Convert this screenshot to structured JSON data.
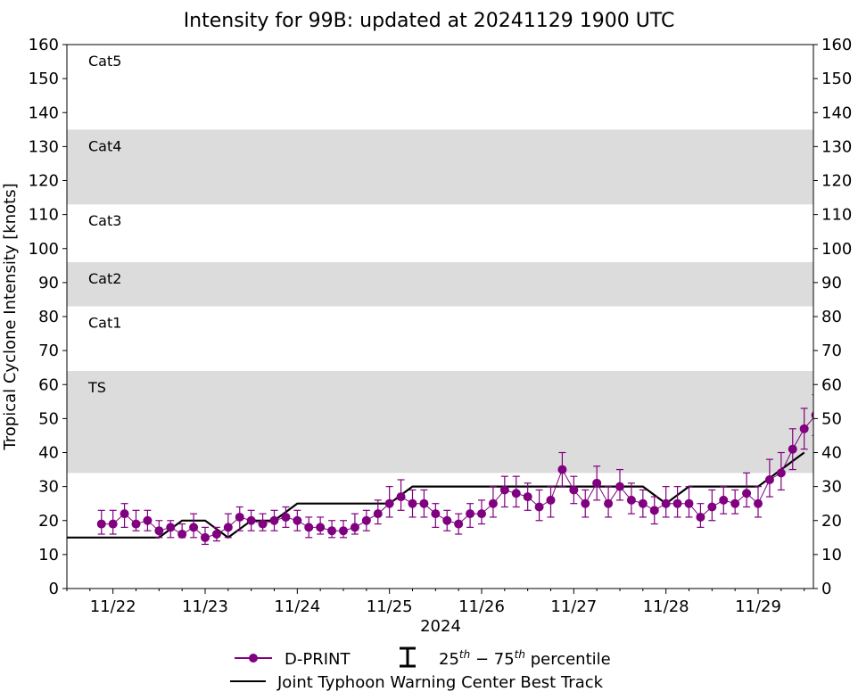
{
  "chart_data": {
    "type": "line",
    "title": "Intensity for 99B: updated at 20241129 1900 UTC",
    "ylabel": "Tropical Cyclone Intensity [knots]",
    "xlabel": "2024",
    "ylim": [
      0,
      160
    ],
    "xlim_days": [
      21.5,
      29.6
    ],
    "y_ticks": [
      0,
      10,
      20,
      30,
      40,
      50,
      60,
      70,
      80,
      90,
      100,
      110,
      120,
      130,
      140,
      150,
      160
    ],
    "x_ticks": [
      {
        "day": 22,
        "label": "11/22"
      },
      {
        "day": 23,
        "label": "11/23"
      },
      {
        "day": 24,
        "label": "11/24"
      },
      {
        "day": 25,
        "label": "11/25"
      },
      {
        "day": 26,
        "label": "11/26"
      },
      {
        "day": 27,
        "label": "11/27"
      },
      {
        "day": 28,
        "label": "11/28"
      },
      {
        "day": 29,
        "label": "11/29"
      }
    ],
    "category_bands": [
      {
        "name": "TS",
        "min": 34,
        "max": 64,
        "shaded": true
      },
      {
        "name": "Cat1",
        "min": 64,
        "max": 83,
        "shaded": false
      },
      {
        "name": "Cat2",
        "min": 83,
        "max": 96,
        "shaded": true
      },
      {
        "name": "Cat3",
        "min": 96,
        "max": 113,
        "shaded": false
      },
      {
        "name": "Cat4",
        "min": 113,
        "max": 135,
        "shaded": true
      },
      {
        "name": "Cat5",
        "min": 135,
        "max": 160,
        "shaded": false
      }
    ],
    "colors": {
      "dprint": "#800080",
      "best_track": "#000000",
      "band": "#dcdcdc"
    },
    "legend": [
      {
        "label": "D-PRINT",
        "kind": "dprint"
      },
      {
        "label": "25th – 75th percentile",
        "kind": "errorbar"
      },
      {
        "label": "Joint Typhoon Warning Center Best Track",
        "kind": "best_track"
      }
    ],
    "best_track": [
      [
        21.5,
        15
      ],
      [
        22.5,
        15
      ],
      [
        22.75,
        20
      ],
      [
        23.0,
        20
      ],
      [
        23.25,
        15
      ],
      [
        23.5,
        20
      ],
      [
        23.75,
        20
      ],
      [
        24.0,
        25
      ],
      [
        25.0,
        25
      ],
      [
        25.25,
        30
      ],
      [
        27.75,
        30
      ],
      [
        28.0,
        25
      ],
      [
        28.25,
        30
      ],
      [
        29.0,
        30
      ],
      [
        29.25,
        35
      ],
      [
        29.5,
        40
      ]
    ],
    "dprint_series": [
      {
        "x": 21.875,
        "y": 19,
        "lo": 16,
        "hi": 23
      },
      {
        "x": 22.0,
        "y": 19,
        "lo": 16,
        "hi": 23
      },
      {
        "x": 22.125,
        "y": 22,
        "lo": 18,
        "hi": 25
      },
      {
        "x": 22.25,
        "y": 19,
        "lo": 17,
        "hi": 23
      },
      {
        "x": 22.375,
        "y": 20,
        "lo": 17,
        "hi": 23
      },
      {
        "x": 22.5,
        "y": 17,
        "lo": 15,
        "hi": 20
      },
      {
        "x": 22.625,
        "y": 18,
        "lo": 15,
        "hi": 20
      },
      {
        "x": 22.75,
        "y": 16,
        "lo": 15,
        "hi": 19
      },
      {
        "x": 22.875,
        "y": 18,
        "lo": 15,
        "hi": 22
      },
      {
        "x": 23.0,
        "y": 15,
        "lo": 13,
        "hi": 18
      },
      {
        "x": 23.125,
        "y": 16,
        "lo": 14,
        "hi": 18
      },
      {
        "x": 23.25,
        "y": 18,
        "lo": 15,
        "hi": 22
      },
      {
        "x": 23.375,
        "y": 21,
        "lo": 17,
        "hi": 24
      },
      {
        "x": 23.5,
        "y": 20,
        "lo": 17,
        "hi": 23
      },
      {
        "x": 23.625,
        "y": 19,
        "lo": 17,
        "hi": 22
      },
      {
        "x": 23.75,
        "y": 20,
        "lo": 17,
        "hi": 23
      },
      {
        "x": 23.875,
        "y": 21,
        "lo": 18,
        "hi": 24
      },
      {
        "x": 24.0,
        "y": 20,
        "lo": 17,
        "hi": 23
      },
      {
        "x": 24.125,
        "y": 18,
        "lo": 15,
        "hi": 21
      },
      {
        "x": 24.25,
        "y": 18,
        "lo": 16,
        "hi": 21
      },
      {
        "x": 24.375,
        "y": 17,
        "lo": 15,
        "hi": 20
      },
      {
        "x": 24.5,
        "y": 17,
        "lo": 15,
        "hi": 20
      },
      {
        "x": 24.625,
        "y": 18,
        "lo": 16,
        "hi": 22
      },
      {
        "x": 24.75,
        "y": 20,
        "lo": 17,
        "hi": 23
      },
      {
        "x": 24.875,
        "y": 22,
        "lo": 19,
        "hi": 26
      },
      {
        "x": 25.0,
        "y": 25,
        "lo": 21,
        "hi": 30
      },
      {
        "x": 25.125,
        "y": 27,
        "lo": 23,
        "hi": 32
      },
      {
        "x": 25.25,
        "y": 25,
        "lo": 21,
        "hi": 29
      },
      {
        "x": 25.375,
        "y": 25,
        "lo": 21,
        "hi": 29
      },
      {
        "x": 25.5,
        "y": 22,
        "lo": 18,
        "hi": 25
      },
      {
        "x": 25.625,
        "y": 20,
        "lo": 17,
        "hi": 23
      },
      {
        "x": 25.75,
        "y": 19,
        "lo": 16,
        "hi": 22
      },
      {
        "x": 25.875,
        "y": 22,
        "lo": 18,
        "hi": 25
      },
      {
        "x": 26.0,
        "y": 22,
        "lo": 19,
        "hi": 26
      },
      {
        "x": 26.125,
        "y": 25,
        "lo": 21,
        "hi": 30
      },
      {
        "x": 26.25,
        "y": 29,
        "lo": 24,
        "hi": 33
      },
      {
        "x": 26.375,
        "y": 28,
        "lo": 24,
        "hi": 33
      },
      {
        "x": 26.5,
        "y": 27,
        "lo": 23,
        "hi": 31
      },
      {
        "x": 26.625,
        "y": 24,
        "lo": 20,
        "hi": 29
      },
      {
        "x": 26.75,
        "y": 26,
        "lo": 21,
        "hi": 30
      },
      {
        "x": 26.875,
        "y": 35,
        "lo": 30,
        "hi": 40
      },
      {
        "x": 27.0,
        "y": 29,
        "lo": 25,
        "hi": 33
      },
      {
        "x": 27.125,
        "y": 25,
        "lo": 21,
        "hi": 29
      },
      {
        "x": 27.25,
        "y": 31,
        "lo": 26,
        "hi": 36
      },
      {
        "x": 27.375,
        "y": 25,
        "lo": 21,
        "hi": 30
      },
      {
        "x": 27.5,
        "y": 30,
        "lo": 26,
        "hi": 35
      },
      {
        "x": 27.625,
        "y": 26,
        "lo": 22,
        "hi": 31
      },
      {
        "x": 27.75,
        "y": 25,
        "lo": 21,
        "hi": 29
      },
      {
        "x": 27.875,
        "y": 23,
        "lo": 19,
        "hi": 27
      },
      {
        "x": 28.0,
        "y": 25,
        "lo": 21,
        "hi": 30
      },
      {
        "x": 28.125,
        "y": 25,
        "lo": 21,
        "hi": 30
      },
      {
        "x": 28.25,
        "y": 25,
        "lo": 21,
        "hi": 30
      },
      {
        "x": 28.375,
        "y": 21,
        "lo": 18,
        "hi": 25
      },
      {
        "x": 28.5,
        "y": 24,
        "lo": 20,
        "hi": 29
      },
      {
        "x": 28.625,
        "y": 26,
        "lo": 22,
        "hi": 30
      },
      {
        "x": 28.75,
        "y": 25,
        "lo": 22,
        "hi": 29
      },
      {
        "x": 28.875,
        "y": 28,
        "lo": 24,
        "hi": 34
      },
      {
        "x": 29.0,
        "y": 25,
        "lo": 21,
        "hi": 30
      },
      {
        "x": 29.125,
        "y": 32,
        "lo": 27,
        "hi": 38
      },
      {
        "x": 29.25,
        "y": 34,
        "lo": 29,
        "hi": 40
      },
      {
        "x": 29.375,
        "y": 41,
        "lo": 35,
        "hi": 47
      },
      {
        "x": 29.5,
        "y": 47,
        "lo": 41,
        "hi": 53
      },
      {
        "x": 29.625,
        "y": 51,
        "lo": 45,
        "hi": 57
      }
    ]
  }
}
